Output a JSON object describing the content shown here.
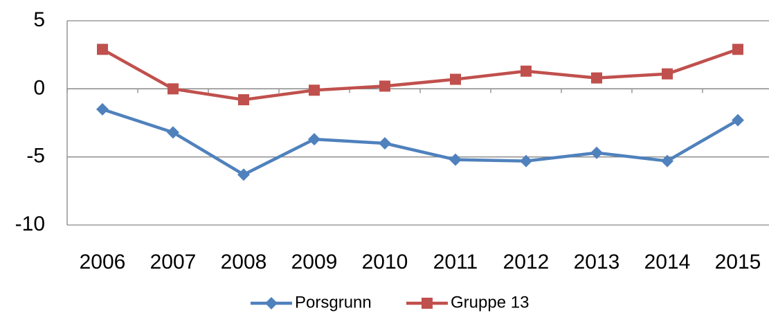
{
  "chart_data": {
    "type": "line",
    "categories": [
      "2006",
      "2007",
      "2008",
      "2009",
      "2010",
      "2011",
      "2012",
      "2013",
      "2014",
      "2015"
    ],
    "series": [
      {
        "name": "Porsgrunn",
        "color": "#4f81bd",
        "marker": "diamond",
        "values": [
          -1.5,
          -3.2,
          -6.3,
          -3.7,
          -4.0,
          -5.2,
          -5.3,
          -4.7,
          -5.3,
          -2.3
        ]
      },
      {
        "name": "Gruppe 13",
        "color": "#c0504d",
        "marker": "square",
        "values": [
          2.9,
          0,
          -0.8,
          -0.1,
          0.2,
          0.7,
          1.3,
          0.8,
          1.1,
          2.9
        ]
      }
    ],
    "ylim": [
      -10,
      5
    ],
    "yticks": [
      -10,
      -5,
      0,
      5
    ],
    "grid": true,
    "legend": "bottom"
  }
}
